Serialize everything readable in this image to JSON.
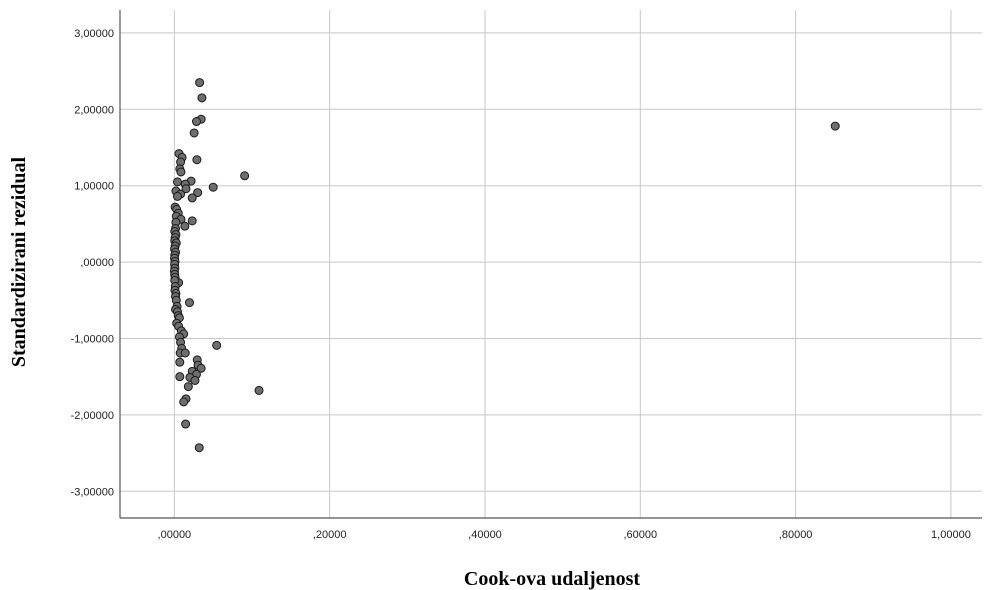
{
  "chart_data": {
    "type": "scatter",
    "title": "",
    "xlabel": "Cook-ova udaljenost",
    "ylabel": "Standardizirani rezidual",
    "xlim": [
      -0.07,
      1.04
    ],
    "ylim": [
      -3.35,
      3.3
    ],
    "grid": true,
    "x_ticks": [
      0,
      0.2,
      0.4,
      0.6,
      0.8,
      1.0
    ],
    "x_tick_labels": [
      ",00000",
      ",20000",
      ",40000",
      ",60000",
      ",80000",
      "1,00000"
    ],
    "y_ticks": [
      3,
      2,
      1,
      0,
      -1,
      -2,
      -3
    ],
    "y_tick_labels": [
      "3,00000",
      "2,00000",
      "1,00000",
      ",00000",
      "-1,00000",
      "-2,00000",
      "-3,00000"
    ],
    "series": [
      {
        "points": [
          [
            0.0325,
            2.35
          ],
          [
            0.0355,
            2.15
          ],
          [
            0.0345,
            1.87
          ],
          [
            0.0285,
            1.84
          ],
          [
            0.0255,
            1.69
          ],
          [
            0.029,
            1.34
          ],
          [
            0.006,
            1.42
          ],
          [
            0.01,
            1.37
          ],
          [
            0.008,
            1.31
          ],
          [
            0.007,
            1.22
          ],
          [
            0.0085,
            1.18
          ],
          [
            0.0905,
            1.13
          ],
          [
            0.0215,
            1.06
          ],
          [
            0.004,
            1.05
          ],
          [
            0.014,
            1.02
          ],
          [
            0.05,
            0.98
          ],
          [
            0.015,
            0.96
          ],
          [
            0.002,
            0.93
          ],
          [
            0.03,
            0.91
          ],
          [
            0.008,
            0.89
          ],
          [
            0.004,
            0.86
          ],
          [
            0.023,
            0.84
          ],
          [
            0.001,
            0.72
          ],
          [
            0.003,
            0.69
          ],
          [
            0.005,
            0.64
          ],
          [
            0.0025,
            0.6
          ],
          [
            0.0085,
            0.56
          ],
          [
            0.023,
            0.54
          ],
          [
            0.002,
            0.52
          ],
          [
            0.0135,
            0.47
          ],
          [
            0.0015,
            0.44
          ],
          [
            0.0005,
            0.4
          ],
          [
            0.002,
            0.36
          ],
          [
            0.001,
            0.32
          ],
          [
            0.0005,
            0.28
          ],
          [
            0.0025,
            0.25
          ],
          [
            0.001,
            0.21
          ],
          [
            0.0003,
            0.17
          ],
          [
            0.0015,
            0.13
          ],
          [
            0.0005,
            0.09
          ],
          [
            0.0002,
            0.05
          ],
          [
            0.0008,
            0.01
          ],
          [
            0.0003,
            -0.03
          ],
          [
            0.0006,
            -0.08
          ],
          [
            0.0001,
            -0.12
          ],
          [
            0.0004,
            -0.16
          ],
          [
            0.0009,
            -0.2
          ],
          [
            0.0055,
            -0.27
          ],
          [
            0.0005,
            -0.24
          ],
          [
            0.0012,
            -0.32
          ],
          [
            0.0008,
            -0.37
          ],
          [
            0.002,
            -0.41
          ],
          [
            0.0015,
            -0.45
          ],
          [
            0.0025,
            -0.5
          ],
          [
            0.0195,
            -0.53
          ],
          [
            0.0035,
            -0.58
          ],
          [
            0.0015,
            -0.62
          ],
          [
            0.004,
            -0.65
          ],
          [
            0.005,
            -0.7
          ],
          [
            0.0065,
            -0.73
          ],
          [
            0.003,
            -0.8
          ],
          [
            0.0055,
            -0.84
          ],
          [
            0.009,
            -0.9
          ],
          [
            0.012,
            -0.94
          ],
          [
            0.0065,
            -0.98
          ],
          [
            0.008,
            -1.05
          ],
          [
            0.0545,
            -1.09
          ],
          [
            0.0095,
            -1.13
          ],
          [
            0.0075,
            -1.19
          ],
          [
            0.014,
            -1.19
          ],
          [
            0.0295,
            -1.28
          ],
          [
            0.007,
            -1.31
          ],
          [
            0.0305,
            -1.35
          ],
          [
            0.0345,
            -1.39
          ],
          [
            0.023,
            -1.43
          ],
          [
            0.0285,
            -1.47
          ],
          [
            0.007,
            -1.5
          ],
          [
            0.02,
            -1.51
          ],
          [
            0.0265,
            -1.55
          ],
          [
            0.018,
            -1.63
          ],
          [
            0.109,
            -1.68
          ],
          [
            0.015,
            -1.79
          ],
          [
            0.012,
            -1.83
          ],
          [
            0.0145,
            -2.12
          ],
          [
            0.032,
            -2.43
          ],
          [
            0.851,
            1.78
          ]
        ]
      }
    ]
  }
}
